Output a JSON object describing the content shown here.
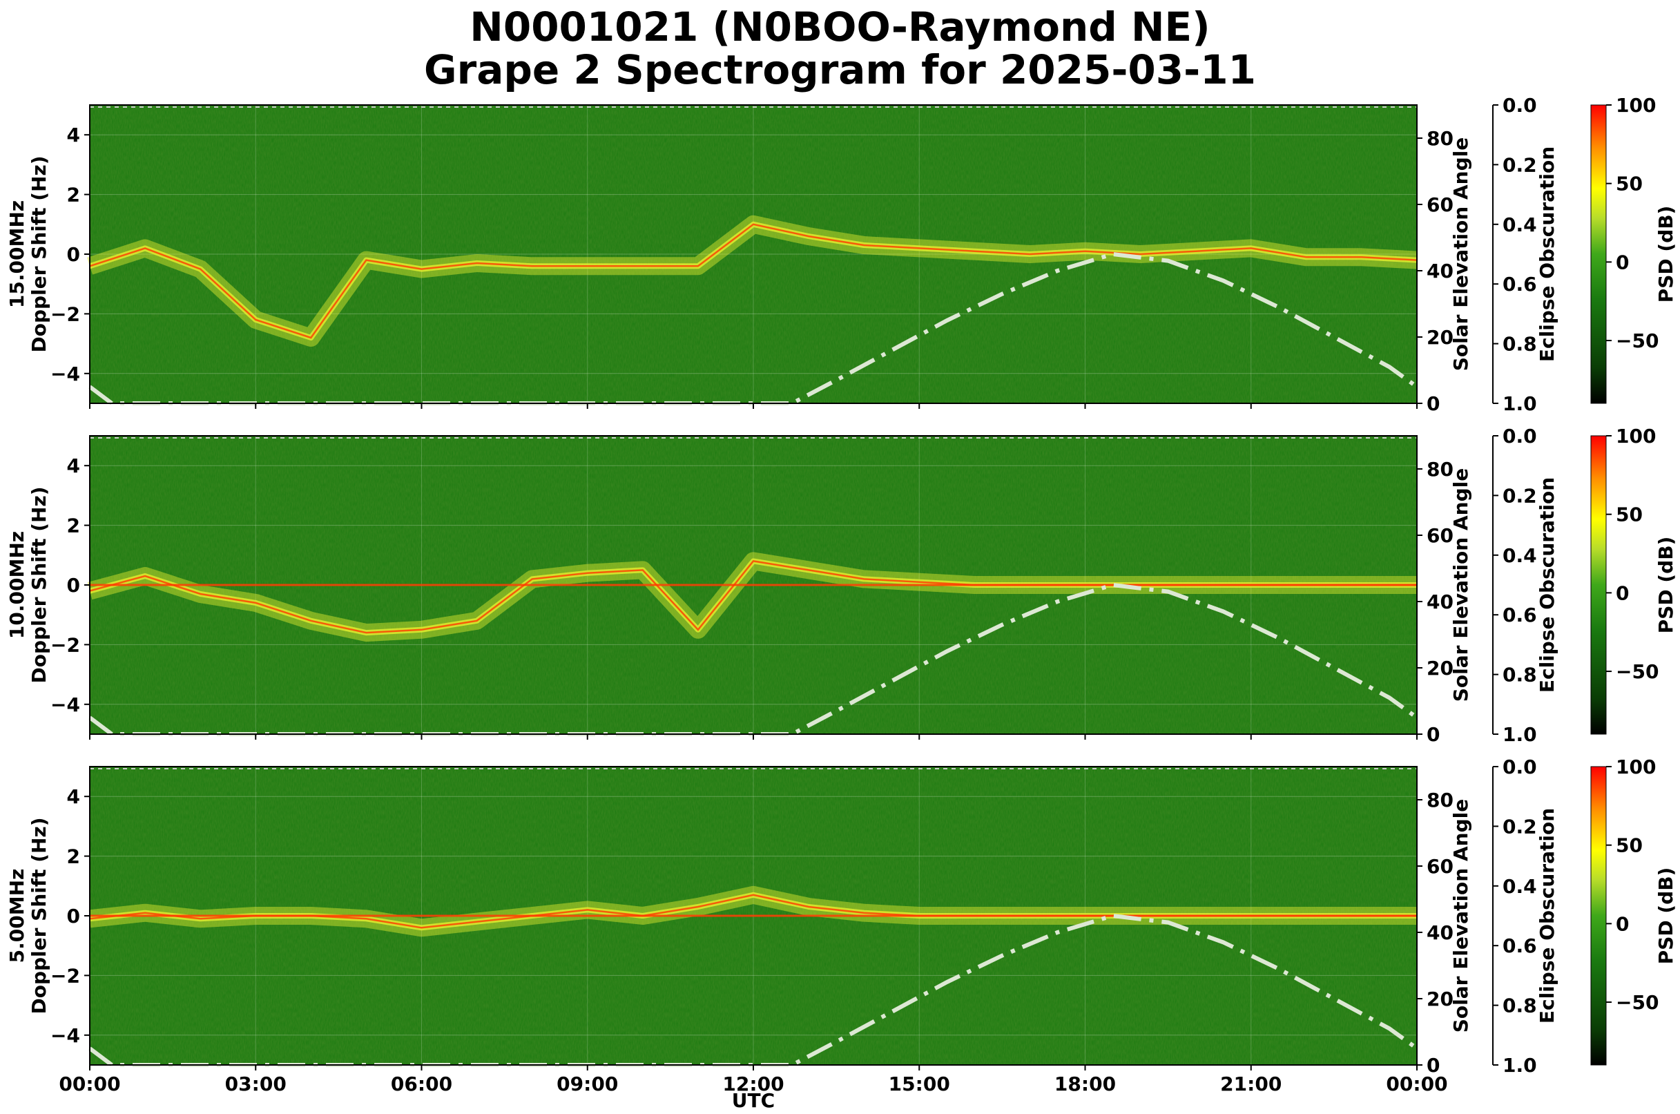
{
  "figure": {
    "title_line1": "N0001021 (N0BOO-Raymond NE)",
    "title_line2": "Grape 2 Spectrogram for 2025-03-11",
    "x_axis_label": "UTC",
    "x_tick_labels": [
      "00:00",
      "03:00",
      "06:00",
      "09:00",
      "12:00",
      "15:00",
      "18:00",
      "21:00",
      "00:00"
    ],
    "y_ticks": [
      "4",
      "2",
      "0",
      "−2",
      "−4"
    ],
    "elev_ticks": [
      "80",
      "60",
      "40",
      "20",
      "0"
    ],
    "eclipse_ticks": [
      "0.0",
      "0.2",
      "0.4",
      "0.6",
      "0.8",
      "1.0"
    ],
    "colorbar_ticks": [
      "100",
      "50",
      "0",
      "−50"
    ],
    "right_label_elevation": "Solar Elevation Angle",
    "right_label_eclipse": "Eclipse Obscuration",
    "colorbar_label": "PSD (dB)"
  },
  "colors": {
    "background": "#1a7a10",
    "trace_red": "#ff3a00",
    "trace_yellow": "#e6ee30",
    "solar_curve": "#dde8d4",
    "colormap": [
      "#000000",
      "#0a3d05",
      "#1a7a10",
      "#3fa81a",
      "#b7dc2a",
      "#ffff00",
      "#ff8c00",
      "#ff0000"
    ]
  },
  "chart_data": [
    {
      "type": "heatmap",
      "panel": "15 MHz",
      "ylabel_line1": "15.00MHz",
      "ylabel_line2": "Doppler Shift (Hz)",
      "ylim": [
        -5,
        5
      ],
      "xlim_hours": [
        0,
        24
      ],
      "colorbar_range_db": [
        -90,
        100
      ],
      "doppler_trace": {
        "x_hours": [
          0,
          1,
          2,
          3,
          4,
          5,
          6,
          7,
          8,
          9,
          10,
          11,
          12,
          13,
          14,
          15,
          16,
          17,
          18,
          19,
          20,
          21,
          22,
          23,
          24
        ],
        "y_hz": [
          -0.4,
          0.2,
          -0.5,
          -2.2,
          -2.8,
          -0.2,
          -0.5,
          -0.3,
          -0.4,
          -0.4,
          -0.4,
          -0.4,
          1.0,
          0.6,
          0.3,
          0.2,
          0.1,
          0.0,
          0.1,
          0.0,
          0.1,
          0.2,
          -0.1,
          -0.1,
          -0.2
        ]
      },
      "solar_elevation_deg": {
        "x_hours": [
          0,
          0.4,
          12.7,
          13.5,
          14.5,
          15.5,
          16.5,
          17.5,
          18.5,
          19.5,
          20.5,
          21.5,
          22.5,
          23.5,
          24
        ],
        "y_deg": [
          5,
          0,
          0,
          7,
          16,
          25,
          33,
          40,
          45,
          43,
          37,
          29,
          20,
          11,
          5
        ]
      },
      "psd_db_range": [
        -90,
        100
      ]
    },
    {
      "type": "heatmap",
      "panel": "10 MHz",
      "ylabel_line1": "10.00MHz",
      "ylabel_line2": "Doppler Shift (Hz)",
      "ylim": [
        -5,
        5
      ],
      "xlim_hours": [
        0,
        24
      ],
      "colorbar_range_db": [
        -90,
        100
      ],
      "doppler_trace": {
        "x_hours": [
          0,
          1,
          2,
          3,
          4,
          5,
          6,
          7,
          8,
          9,
          10,
          11,
          12,
          13,
          14,
          15,
          16,
          17,
          18,
          19,
          20,
          21,
          22,
          23,
          24
        ],
        "y_hz": [
          -0.2,
          0.3,
          -0.3,
          -0.6,
          -1.2,
          -1.6,
          -1.5,
          -1.2,
          0.2,
          0.4,
          0.5,
          -1.5,
          0.8,
          0.5,
          0.2,
          0.1,
          0.0,
          0.0,
          0.0,
          0.0,
          0.0,
          0.0,
          0.0,
          0.0,
          0.0
        ]
      },
      "carrier_line_hz": 0,
      "solar_elevation_deg": {
        "x_hours": [
          0,
          0.4,
          12.7,
          13.5,
          14.5,
          15.5,
          16.5,
          17.5,
          18.5,
          19.5,
          20.5,
          21.5,
          22.5,
          23.5,
          24
        ],
        "y_deg": [
          5,
          0,
          0,
          7,
          16,
          25,
          33,
          40,
          45,
          43,
          37,
          29,
          20,
          11,
          5
        ]
      },
      "psd_db_range": [
        -90,
        100
      ]
    },
    {
      "type": "heatmap",
      "panel": "5 MHz",
      "ylabel_line1": "5.00MHz",
      "ylabel_line2": "Doppler Shift (Hz)",
      "ylim": [
        -5,
        5
      ],
      "xlim_hours": [
        0,
        24
      ],
      "colorbar_range_db": [
        -90,
        100
      ],
      "doppler_trace": {
        "x_hours": [
          0,
          1,
          2,
          3,
          4,
          5,
          6,
          7,
          8,
          9,
          10,
          11,
          12,
          13,
          14,
          15,
          16,
          17,
          18,
          19,
          20,
          21,
          22,
          23,
          24
        ],
        "y_hz": [
          -0.1,
          0.1,
          -0.1,
          0.0,
          0.0,
          -0.1,
          -0.4,
          -0.2,
          0.0,
          0.2,
          0.0,
          0.3,
          0.7,
          0.3,
          0.1,
          0.0,
          0.0,
          0.0,
          0.0,
          0.0,
          0.0,
          0.0,
          0.0,
          0.0,
          0.0
        ]
      },
      "carrier_line_hz": 0,
      "solar_elevation_deg": {
        "x_hours": [
          0,
          0.4,
          12.7,
          13.5,
          14.5,
          15.5,
          16.5,
          17.5,
          18.5,
          19.5,
          20.5,
          21.5,
          22.5,
          23.5,
          24
        ],
        "y_deg": [
          5,
          0,
          0,
          7,
          16,
          25,
          33,
          40,
          45,
          43,
          37,
          29,
          20,
          11,
          5
        ]
      },
      "psd_db_range": [
        -90,
        100
      ]
    }
  ]
}
